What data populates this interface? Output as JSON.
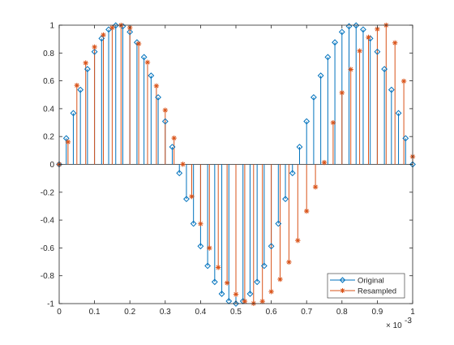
{
  "chart_data": {
    "type": "stem",
    "title": "",
    "xlabel": "",
    "ylabel": "",
    "x_scale_label": "× 10",
    "x_scale_exponent": "-3",
    "xlim": [
      0,
      0.001
    ],
    "ylim": [
      -1,
      1
    ],
    "x_ticks": [
      0,
      0.0001,
      0.0002,
      0.0003,
      0.0004,
      0.0005,
      0.0006,
      0.0007,
      0.0008,
      0.0009,
      0.001
    ],
    "x_tick_labels": [
      "0",
      "0.1",
      "0.2",
      "0.3",
      "0.4",
      "0.5",
      "0.6",
      "0.7",
      "0.8",
      "0.9",
      "1"
    ],
    "y_ticks": [
      -1,
      -0.8,
      -0.6,
      -0.4,
      -0.2,
      0,
      0.2,
      0.4,
      0.6,
      0.8,
      1
    ],
    "y_tick_labels": [
      "-1",
      "-0.8",
      "-0.6",
      "-0.4",
      "-0.2",
      "0",
      "0.2",
      "0.4",
      "0.6",
      "0.8",
      "1"
    ],
    "grid": false,
    "legend_position": "bottom-right",
    "series": [
      {
        "name": "Original",
        "color": "#0072BD",
        "marker": "diamond",
        "x": [
          0,
          2e-05,
          4e-05,
          6e-05,
          8e-05,
          0.0001,
          0.00012,
          0.00014,
          0.00016,
          0.00018,
          0.0002,
          0.00022,
          0.00024,
          0.00026,
          0.00028,
          0.0003,
          0.00032,
          0.00034,
          0.00036,
          0.00038,
          0.0004,
          0.00042,
          0.00044,
          0.00046,
          0.00048,
          0.0005,
          0.00052,
          0.00054,
          0.00056,
          0.00058,
          0.0006,
          0.00062,
          0.00064,
          0.00066,
          0.00068,
          0.0007,
          0.00072,
          0.00074,
          0.00076,
          0.00078,
          0.0008,
          0.00082,
          0.00084,
          0.00086,
          0.00088,
          0.0009,
          0.00092,
          0.00094,
          0.00096,
          0.00098,
          0.001
        ],
        "y": [
          0,
          0.1874,
          0.3681,
          0.5358,
          0.6845,
          0.809,
          0.9048,
          0.9686,
          0.998,
          0.9921,
          0.9511,
          0.8763,
          0.7705,
          0.6374,
          0.4818,
          0.309,
          0.1253,
          -0.0628,
          -0.2487,
          -0.4258,
          -0.5878,
          -0.729,
          -0.8443,
          -0.9298,
          -0.9823,
          -1.0,
          -0.9823,
          -0.9298,
          -0.8443,
          -0.729,
          -0.5878,
          -0.4258,
          -0.2487,
          -0.0628,
          0.1253,
          0.309,
          0.4818,
          0.6374,
          0.7705,
          0.8763,
          0.9511,
          0.9921,
          0.998,
          0.9686,
          0.9048,
          0.809,
          0.6845,
          0.5358,
          0.3681,
          0.1874,
          0
        ]
      },
      {
        "name": "Resampled",
        "color": "#D95319",
        "marker": "asterisk",
        "x": [
          0,
          2.5e-05,
          5e-05,
          7.5e-05,
          0.0001,
          0.000125,
          0.00015,
          0.000175,
          0.0002,
          0.000225,
          0.00025,
          0.000275,
          0.0003,
          0.000325,
          0.00035,
          0.000375,
          0.0004,
          0.000425,
          0.00045,
          0.000475,
          0.0005,
          0.000525,
          0.00055,
          0.000575,
          0.0006,
          0.000625,
          0.00065,
          0.000675,
          0.0007,
          0.000725,
          0.00075,
          0.000775,
          0.0008,
          0.000825,
          0.00085,
          0.000875,
          0.0009,
          0.000925,
          0.00095,
          0.000975,
          0.001
        ],
        "y": [
          0,
          0.1612,
          0.5673,
          0.7286,
          0.8431,
          0.9295,
          0.9816,
          0.9991,
          0.9815,
          0.8661,
          0.7327,
          0.5636,
          0.3893,
          0.1889,
          0.001,
          -0.2305,
          -0.4271,
          -0.6011,
          -0.7403,
          -0.8514,
          -0.9333,
          -0.9835,
          -0.9985,
          -0.9839,
          -0.9139,
          -0.8253,
          -0.7018,
          -0.5467,
          -0.3356,
          -0.1622,
          0.0134,
          0.2994,
          0.5145,
          0.6823,
          0.815,
          0.9126,
          0.972,
          0.9995,
          0.873,
          0.5975,
          0.0556
        ]
      }
    ]
  }
}
